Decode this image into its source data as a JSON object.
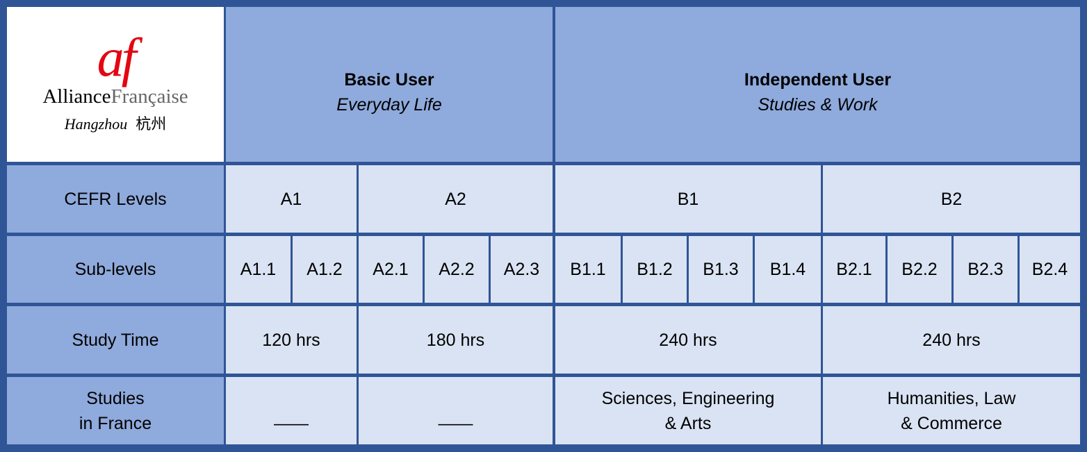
{
  "logo": {
    "symbol": "af",
    "name_part1": "Alliance",
    "name_part2": "Française",
    "city": "Hangzhou",
    "city_cn": "杭州"
  },
  "header": [
    {
      "title": "Basic User",
      "subtitle": "Everyday Life"
    },
    {
      "title": "Independent User",
      "subtitle": "Studies & Work"
    }
  ],
  "rows": [
    {
      "label": "CEFR Levels",
      "cells": [
        "A1",
        "A2",
        "B1",
        "B2"
      ]
    },
    {
      "label": "Sub-levels",
      "cells": [
        "A1.1",
        "A1.2",
        "A2.1",
        "A2.2",
        "A2.3",
        "B1.1",
        "B1.2",
        "B1.3",
        "B1.4",
        "B2.1",
        "B2.2",
        "B2.3",
        "B2.4"
      ]
    },
    {
      "label": "Study Time",
      "cells": [
        "120 hrs",
        "180 hrs",
        "240 hrs",
        "240 hrs"
      ]
    },
    {
      "label": "Studies\nin France",
      "cells": [
        "——",
        "——",
        "Sciences, Engineering\n& Arts",
        "Humanities, Law\n& Commerce"
      ]
    }
  ]
}
